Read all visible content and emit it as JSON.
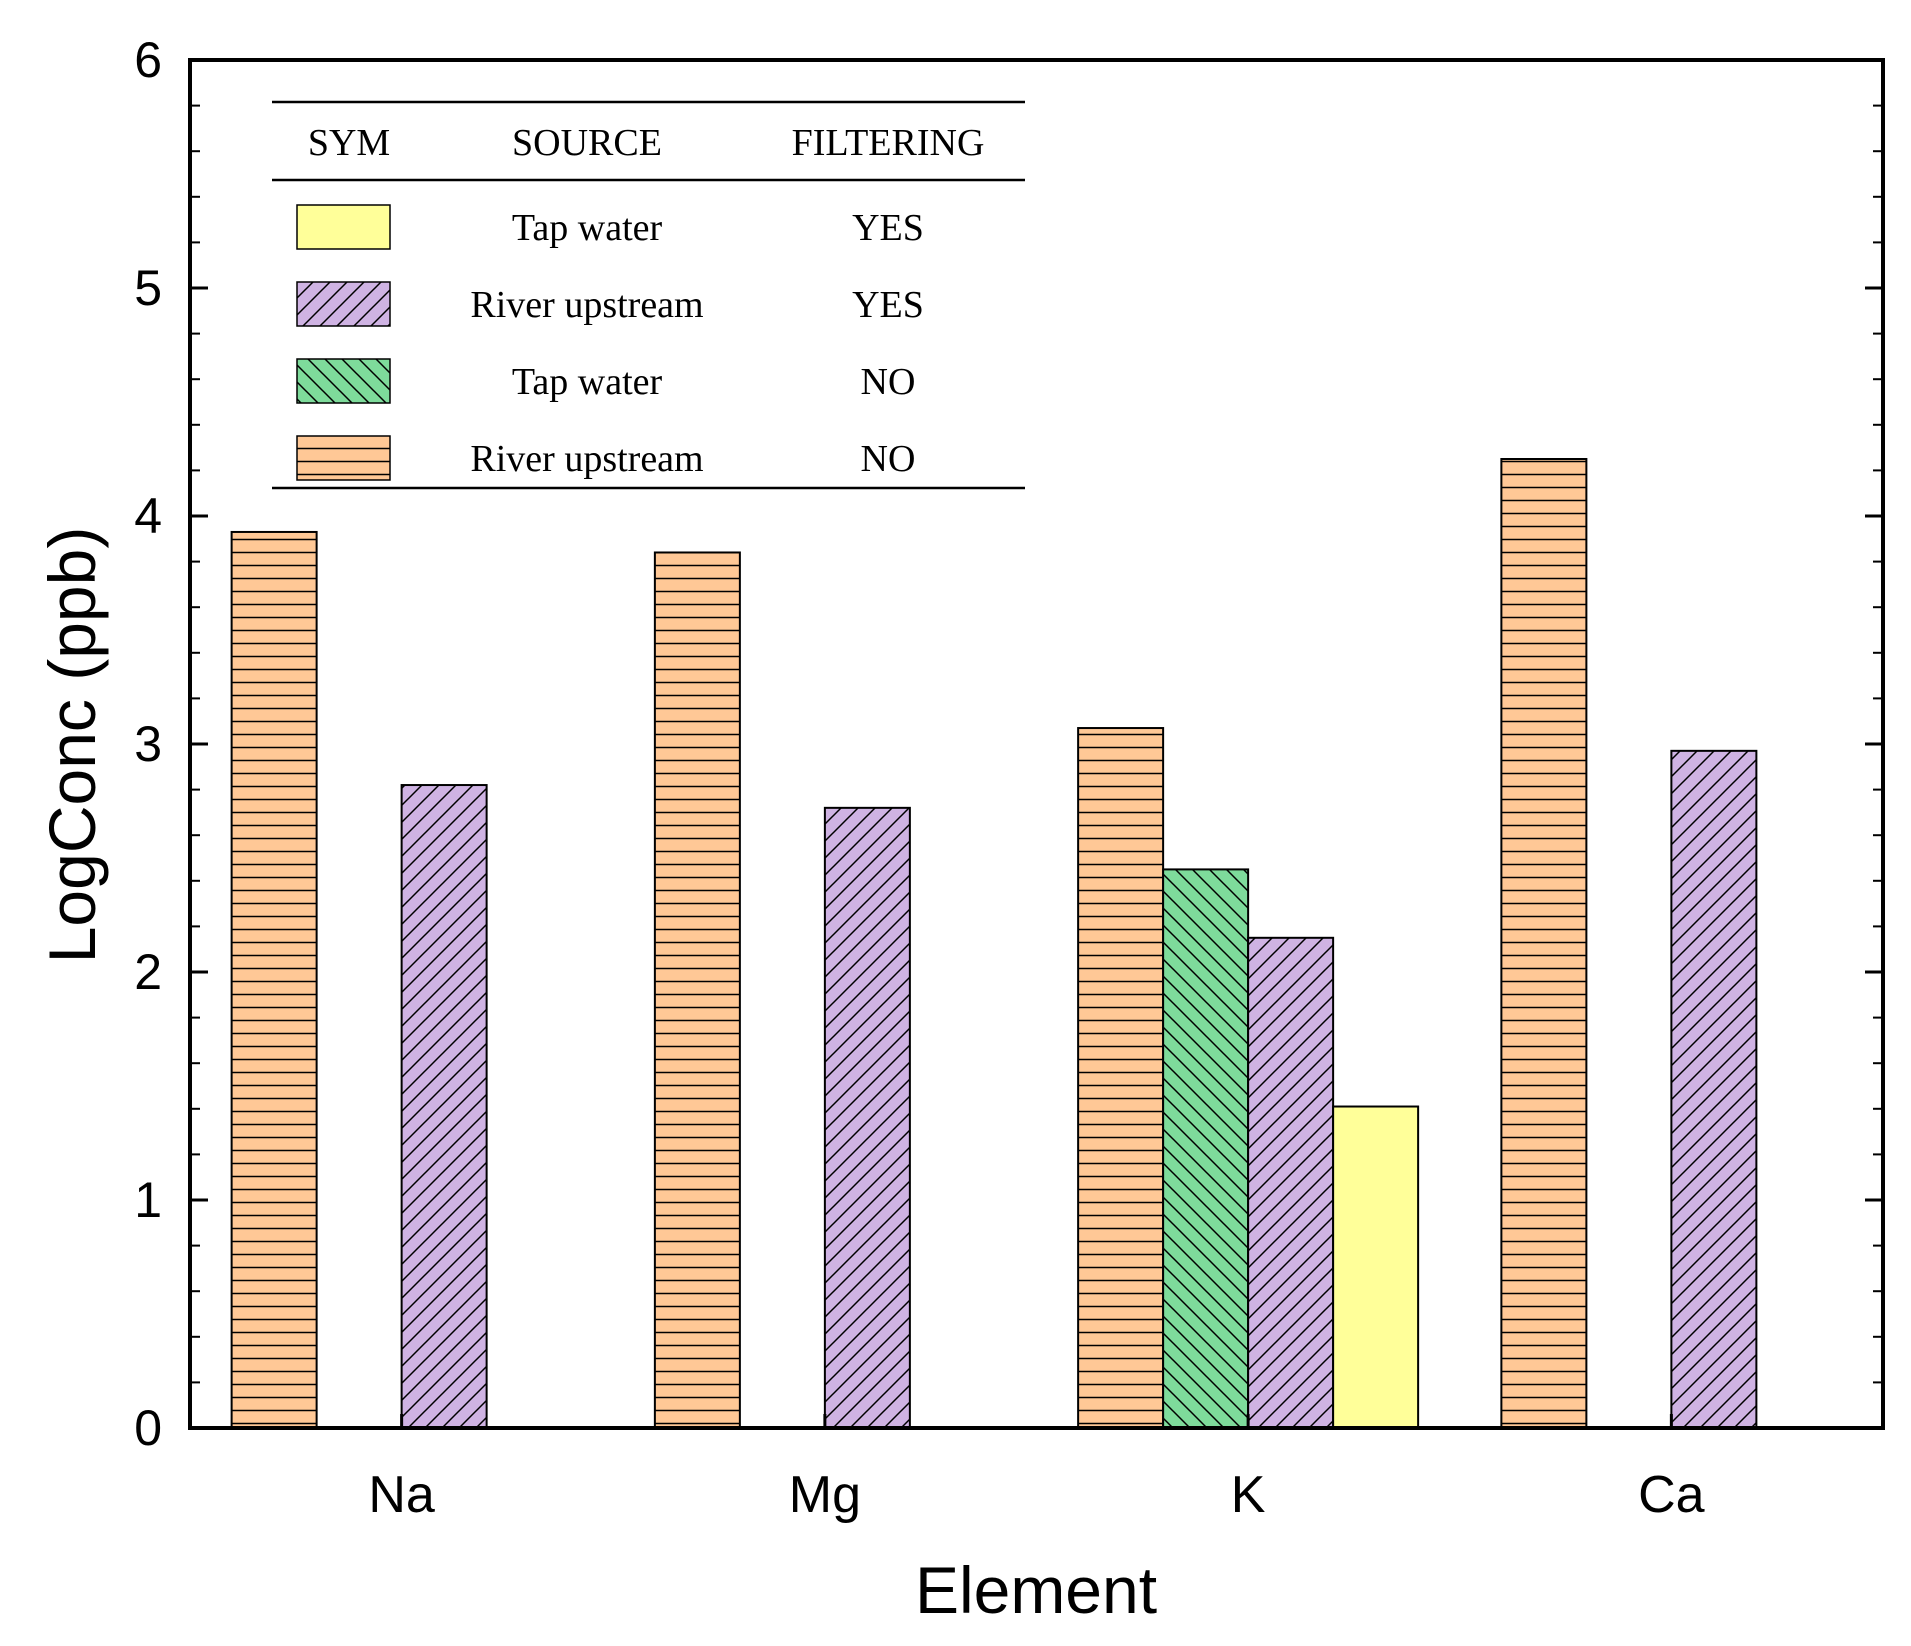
{
  "chart_data": {
    "type": "bar",
    "title": "",
    "xlabel": "Element",
    "ylabel": "LogConc (ppb)",
    "ylim": [
      0,
      6
    ],
    "yticks": [
      "0",
      "1",
      "2",
      "3",
      "4",
      "5",
      "6"
    ],
    "categories": [
      "Na",
      "Mg",
      "K",
      "Ca"
    ],
    "series": [
      {
        "key": "river_no",
        "name": "River upstream",
        "filtering": "NO",
        "values": [
          3.93,
          3.84,
          3.07,
          4.25
        ],
        "color": "#FFC896",
        "hatch": "horizontal"
      },
      {
        "key": "tap_no",
        "name": "Tap water",
        "filtering": "NO",
        "values": [
          null,
          null,
          2.45,
          null
        ],
        "color": "#7EDB9B",
        "hatch": "backslash"
      },
      {
        "key": "river_yes",
        "name": "River upstream",
        "filtering": "YES",
        "values": [
          2.82,
          2.72,
          2.15,
          2.97
        ],
        "color": "#CFB3E3",
        "hatch": "slash"
      },
      {
        "key": "tap_yes",
        "name": "Tap water",
        "filtering": "YES",
        "values": [
          null,
          null,
          1.41,
          null
        ],
        "color": "#FFFF99",
        "hatch": "none"
      }
    ],
    "legend": {
      "headers": [
        "SYM",
        "SOURCE",
        "FILTERING"
      ],
      "rows": [
        {
          "series": "tap_yes",
          "source": "Tap water",
          "filtering": "YES"
        },
        {
          "series": "river_yes",
          "source": "River upstream",
          "filtering": "YES"
        },
        {
          "series": "tap_no",
          "source": "Tap water",
          "filtering": "NO"
        },
        {
          "series": "river_no",
          "source": "River upstream",
          "filtering": "NO"
        }
      ]
    }
  }
}
